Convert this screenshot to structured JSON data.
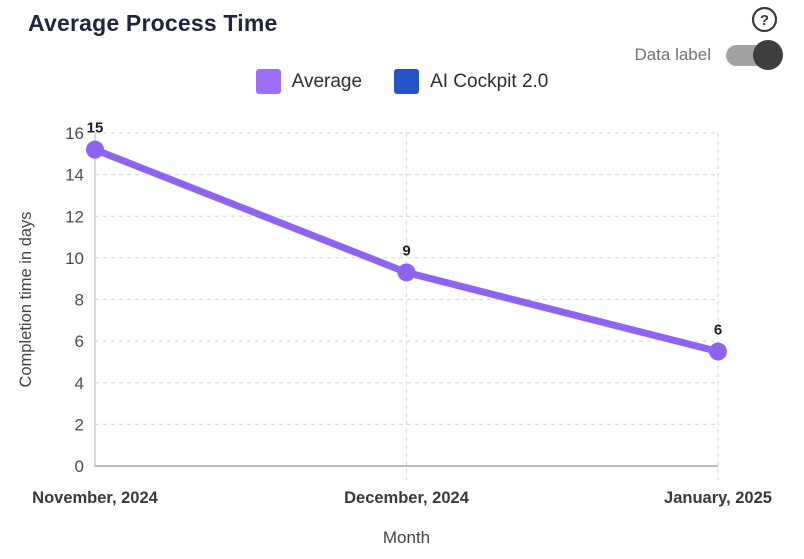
{
  "header": {
    "title": "Average Process Time",
    "help_icon": "question-mark-circle",
    "toggle": {
      "label": "Data label",
      "state": "on"
    }
  },
  "legend": {
    "items": [
      {
        "label": "Average",
        "color": "#9e6df9"
      },
      {
        "label": "AI Cockpit 2.0",
        "color": "#2454c7"
      }
    ]
  },
  "chart_data": {
    "type": "line",
    "title": "Average Process Time",
    "xlabel": "Month",
    "ylabel": "Completion time in days",
    "categories": [
      "November, 2024",
      "December, 2024",
      "January, 2025"
    ],
    "series": [
      {
        "name": "Average",
        "color": "#8f62f0",
        "values": [
          15.2,
          9.3,
          5.5
        ],
        "data_labels": [
          "15",
          "9",
          "6"
        ]
      },
      {
        "name": "AI Cockpit 2.0",
        "color": "#2454c7",
        "values": [],
        "data_labels": []
      }
    ],
    "ylim": [
      0,
      16
    ],
    "ytick_step": 2,
    "grid": true,
    "grid_style": "dashed",
    "legend_position": "top-center",
    "data_labels_visible": true
  },
  "style": {
    "grid_color": "#dcdcdc",
    "y_axis_color": "#c9c9c9",
    "x_axis_color": "#a2a2a2",
    "tick_text_color": "#4b4b4b",
    "category_text_color": "#393939",
    "axis_title_color": "#424242",
    "data_label_color": "#1f1f1f",
    "icon_color": "#3a3a3a"
  }
}
